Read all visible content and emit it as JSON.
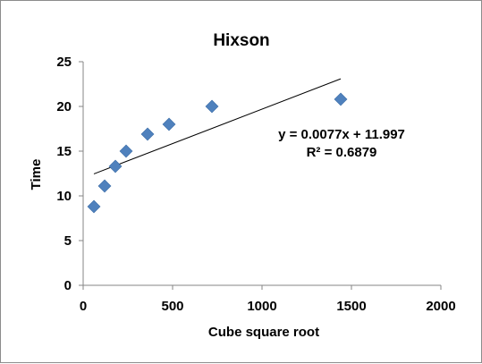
{
  "chart_data": {
    "type": "scatter",
    "title": "Hixson",
    "xlabel": "Cube square root",
    "ylabel": "Time",
    "xlim": [
      0,
      2000
    ],
    "ylim": [
      0,
      25
    ],
    "x_ticks": [
      "0",
      "500",
      "1000",
      "1500",
      "2000"
    ],
    "y_ticks": [
      "0",
      "5",
      "10",
      "15",
      "20",
      "25"
    ],
    "grid": false,
    "legend": "none",
    "marker_color": "#4f81bd",
    "series": [
      {
        "points": [
          {
            "x": 60,
            "y": 8.8
          },
          {
            "x": 120,
            "y": 11.1
          },
          {
            "x": 180,
            "y": 13.3
          },
          {
            "x": 240,
            "y": 15.0
          },
          {
            "x": 360,
            "y": 16.9
          },
          {
            "x": 480,
            "y": 18.0
          },
          {
            "x": 720,
            "y": 20.0
          },
          {
            "x": 1440,
            "y": 20.8
          }
        ]
      }
    ],
    "trendline": {
      "type": "linear",
      "slope": 0.0077,
      "intercept": 11.997,
      "x_range": [
        60,
        1440
      ],
      "color": "#000000",
      "equation_text": "y = 0.0077x + 11.997",
      "r2_text": "R² = 0.6879"
    }
  }
}
